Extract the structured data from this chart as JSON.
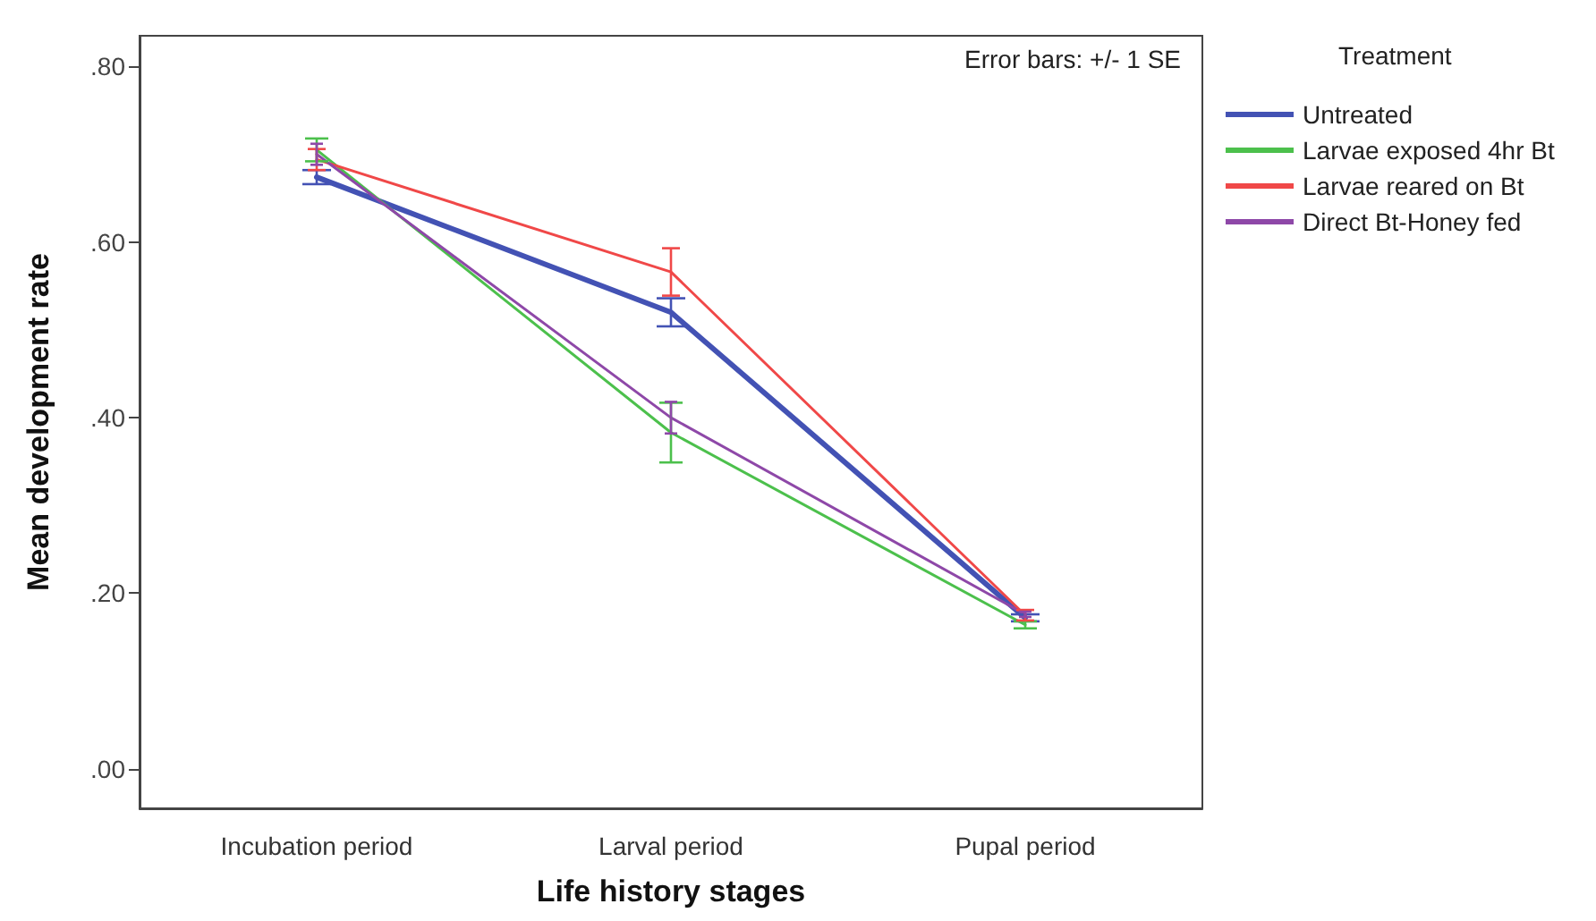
{
  "chart_data": {
    "type": "line",
    "xlabel": "Life history stages",
    "ylabel": "Mean development rate",
    "legend_title": "Treatment",
    "annotations": [
      "Error bars: +/- 1 SE"
    ],
    "categories": [
      "Incubation period",
      "Larval period",
      "Pupal period"
    ],
    "series": [
      {
        "name": "Untreated",
        "color": "#4352b4",
        "values": [
          0.674,
          0.52,
          0.172
        ],
        "errors": [
          0.008,
          0.016,
          0.004
        ]
      },
      {
        "name": "Larvae exposed 4hr Bt",
        "color": "#4cc04c",
        "values": [
          0.705,
          0.383,
          0.164
        ],
        "errors": [
          0.013,
          0.034,
          0.004
        ]
      },
      {
        "name": "Larvae reared on Bt",
        "color": "#f04848",
        "values": [
          0.694,
          0.566,
          0.175
        ],
        "errors": [
          0.012,
          0.027,
          0.006
        ]
      },
      {
        "name": "Direct Bt-Honey fed",
        "color": "#8e48a8",
        "values": [
          0.7,
          0.4,
          0.176
        ],
        "errors": [
          0.012,
          0.018,
          0.003
        ]
      }
    ],
    "ylim": [
      -0.045,
      0.835
    ],
    "yticks": [
      {
        "value": 0,
        "label": ".00"
      },
      {
        "value": 0.2,
        "label": ".20"
      },
      {
        "value": 0.4,
        "label": ".40"
      },
      {
        "value": 0.6,
        "label": ".60"
      },
      {
        "value": 0.8,
        "label": ".80"
      }
    ],
    "grid": false,
    "legend": "right",
    "marker": "none",
    "line_style": "solid"
  }
}
